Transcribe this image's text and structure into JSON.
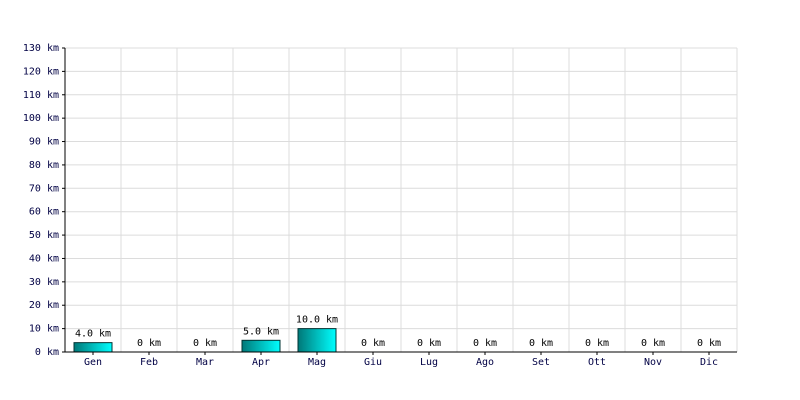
{
  "chart_data": {
    "type": "bar",
    "categories": [
      "Gen",
      "Feb",
      "Mar",
      "Apr",
      "Mag",
      "Giu",
      "Lug",
      "Ago",
      "Set",
      "Ott",
      "Nov",
      "Dic"
    ],
    "values": [
      4,
      0,
      0,
      5,
      10,
      0,
      0,
      0,
      0,
      0,
      0,
      0
    ],
    "value_labels": [
      "4.0 km",
      "0 km",
      "0 km",
      "5.0 km",
      "10.0 km",
      "0 km",
      "0 km",
      "0 km",
      "0 km",
      "0 km",
      "0 km",
      "0 km"
    ],
    "color": [
      "#007878",
      "#00ffff"
    ],
    "ylim": [
      0,
      130
    ],
    "yticks": [
      {
        "value": 0,
        "label": "0 km"
      },
      {
        "value": 10,
        "label": "10 km"
      },
      {
        "value": 20,
        "label": "20 km"
      },
      {
        "value": 30,
        "label": "30 km"
      },
      {
        "value": 40,
        "label": "40 km"
      },
      {
        "value": 50,
        "label": "50 km"
      },
      {
        "value": 60,
        "label": "60 km"
      },
      {
        "value": 70,
        "label": "70 km"
      },
      {
        "value": 80,
        "label": "80 km"
      },
      {
        "value": 90,
        "label": "90 km"
      },
      {
        "value": 100,
        "label": "100 km"
      },
      {
        "value": 110,
        "label": "110 km"
      },
      {
        "value": 120,
        "label": "120 km"
      },
      {
        "value": 130,
        "label": "130 km"
      }
    ],
    "grid": true
  }
}
